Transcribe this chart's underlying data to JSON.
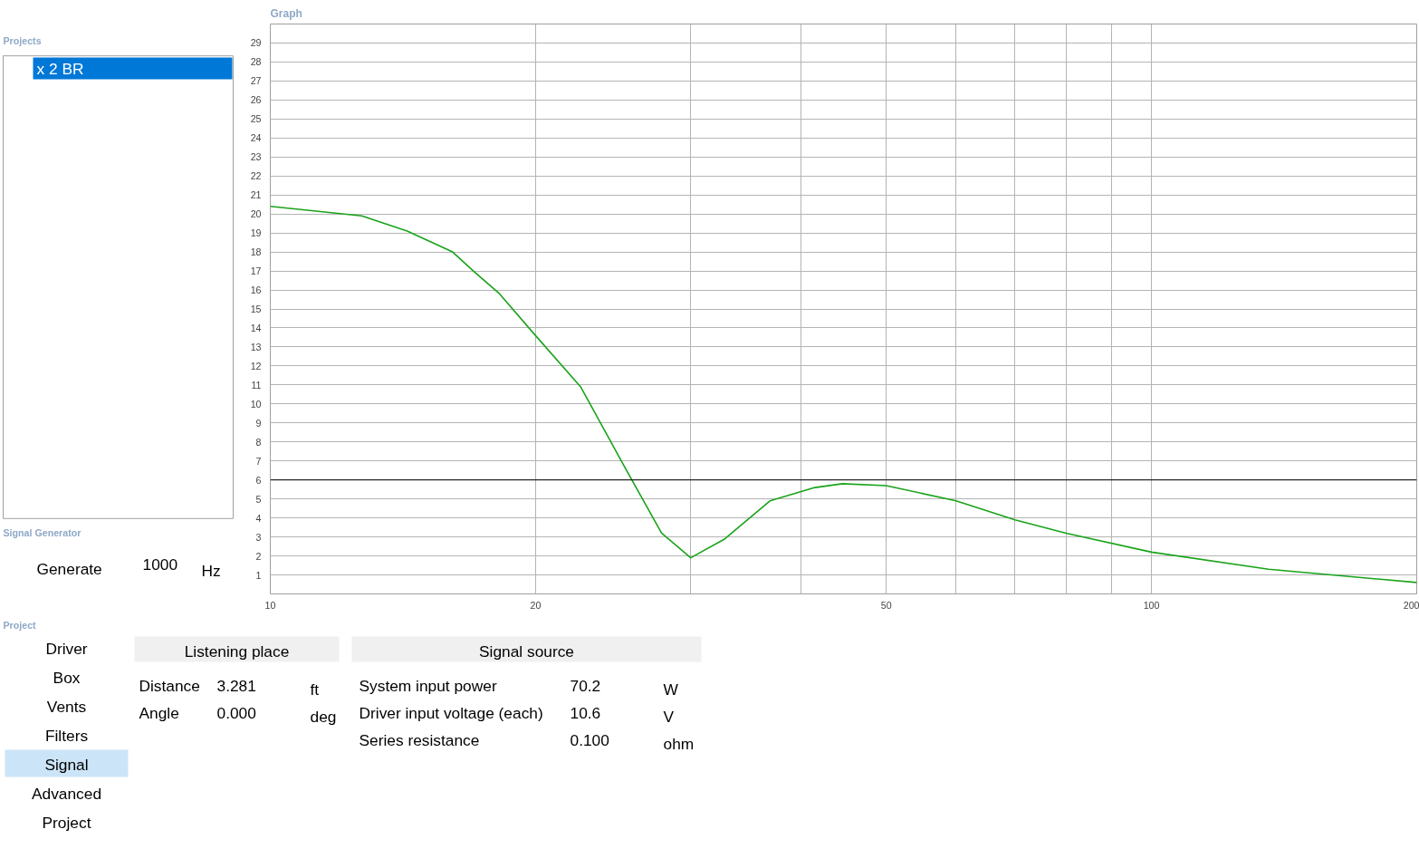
{
  "chart_data": {
    "type": "line",
    "title": "Graph",
    "x": [
      10,
      12.7,
      14.3,
      16.1,
      17.0,
      18.2,
      20,
      22.5,
      25.3,
      27.8,
      30,
      32.8,
      36.9,
      41.5,
      44.6,
      50,
      60,
      70,
      80,
      100,
      135.8,
      200
    ],
    "series": [
      {
        "color": "#1aa31a",
        "values": [
          20.4,
          19.9,
          19.1,
          18.0,
          17.0,
          15.8,
          13.6,
          10.9,
          6.6,
          3.2,
          1.9,
          2.9,
          4.9,
          5.6,
          5.8,
          5.7,
          4.9,
          3.9,
          3.2,
          2.2,
          1.3,
          0.6
        ]
      }
    ],
    "log": "x",
    "xlim": [
      10,
      200
    ],
    "ylim": [
      0,
      30
    ],
    "xticks": [
      10,
      20,
      {
        "value": 30,
        "label": null
      },
      {
        "value": 40,
        "label": null
      },
      50,
      {
        "value": 60,
        "label": null
      },
      {
        "value": 70,
        "label": null
      },
      {
        "value": 80,
        "label": null
      },
      {
        "value": 90,
        "label": null
      },
      100,
      200
    ],
    "yticks": [
      1,
      2,
      3,
      4,
      5,
      6,
      7,
      8,
      9,
      10,
      11,
      12,
      13,
      14,
      15,
      16,
      17,
      18,
      19,
      20,
      21,
      22,
      23,
      24,
      25,
      26,
      27,
      28,
      29
    ],
    "grid": true,
    "ref_lines": [
      {
        "axis": "y",
        "value": 6,
        "color": "#000000"
      }
    ],
    "annotations": [
      "Projects",
      "x 2 BR",
      "Signal Generator",
      "Generate",
      "1000",
      "Hz",
      "Project",
      "Driver",
      "Box",
      "Vents",
      "Filters",
      "Signal",
      "Advanced",
      "Project",
      "Listening place",
      "Signal source",
      "Distance",
      "3.281",
      "ft",
      "Angle",
      "0.000",
      "deg",
      "System input power",
      "70.2",
      "W",
      "Driver input voltage (each)",
      "10.6",
      "V",
      "Series resistance",
      "0.100",
      "ohm"
    ]
  }
}
